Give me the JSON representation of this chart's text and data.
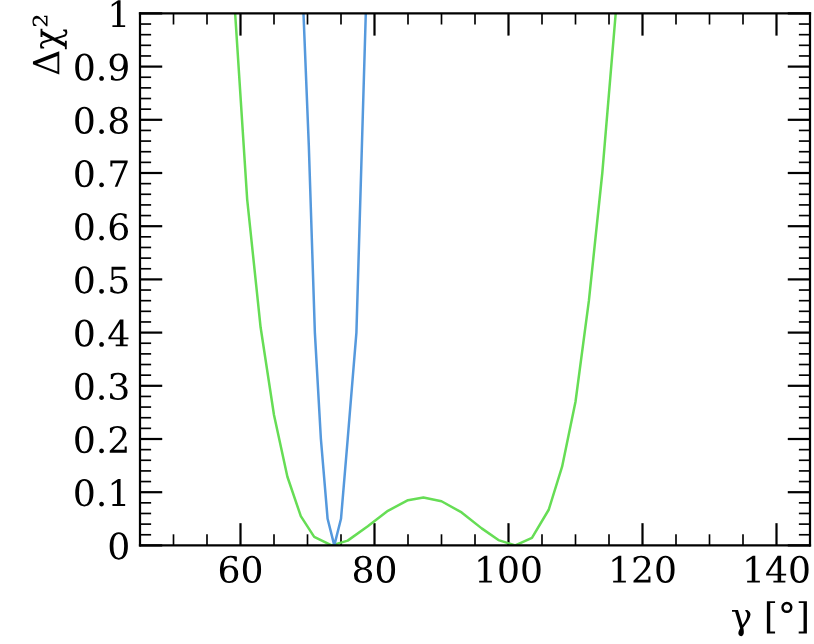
{
  "chart_data": {
    "type": "line",
    "xlabel": "γ [°]",
    "ylabel": "Δχ²",
    "xlim": [
      45,
      145
    ],
    "xticks": [
      60,
      80,
      100,
      120,
      140
    ],
    "ylim": [
      0,
      1
    ],
    "yticks": [
      0,
      0.1,
      0.2,
      0.3,
      0.4,
      0.5,
      0.6,
      0.7,
      0.8,
      0.9,
      1
    ],
    "grid": false,
    "legend": false,
    "marker": "none",
    "line_style": "solid",
    "series": [
      {
        "color": "#66dd55",
        "x": [
          59.2,
          61,
          63,
          65,
          67,
          69,
          71,
          73.6,
          76,
          79,
          82,
          85,
          87.3,
          90,
          93,
          96,
          98.5,
          101,
          103.5,
          106,
          108,
          110,
          112,
          114,
          116
        ],
        "values": [
          1,
          0.65,
          0.41,
          0.245,
          0.129,
          0.055,
          0.016,
          0,
          0.009,
          0.036,
          0.065,
          0.085,
          0.09,
          0.083,
          0.062,
          0.032,
          0.01,
          0,
          0.014,
          0.067,
          0.148,
          0.27,
          0.46,
          0.7,
          1
        ]
      },
      {
        "color": "#5599dd",
        "x": [
          69.4,
          70.2,
          71.1,
          72,
          73,
          74,
          75,
          76,
          77.3,
          78,
          78.7
        ],
        "values": [
          1,
          0.75,
          0.4,
          0.2,
          0.05,
          0,
          0.05,
          0.2,
          0.4,
          0.7,
          1
        ]
      }
    ]
  }
}
